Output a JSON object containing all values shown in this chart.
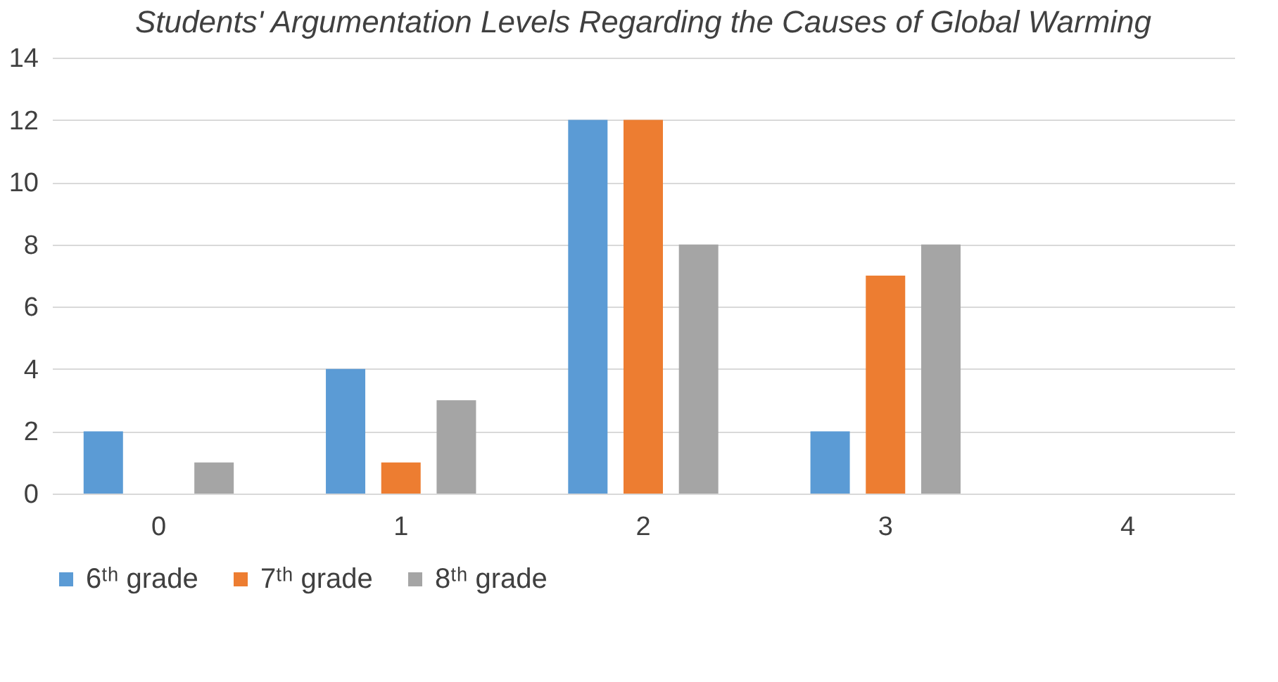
{
  "chart_data": {
    "type": "bar",
    "title": "Students' Argumentation Levels Regarding the Causes of Global Warming",
    "categories": [
      "0",
      "1",
      "2",
      "3",
      "4"
    ],
    "series": [
      {
        "name": "6ᵗʰ grade",
        "color": "#5b9bd5",
        "values": [
          2,
          4,
          12,
          2,
          0
        ]
      },
      {
        "name": "7ᵗʰ grade",
        "color": "#ed7d31",
        "values": [
          0,
          1,
          12,
          7,
          0
        ]
      },
      {
        "name": "8ᵗʰ grade",
        "color": "#a5a5a5",
        "values": [
          1,
          3,
          8,
          8,
          0
        ]
      }
    ],
    "ylim": [
      0,
      14
    ],
    "yticks": [
      0,
      2,
      4,
      6,
      8,
      10,
      12,
      14
    ],
    "grid": "y",
    "legend": "bottom"
  }
}
